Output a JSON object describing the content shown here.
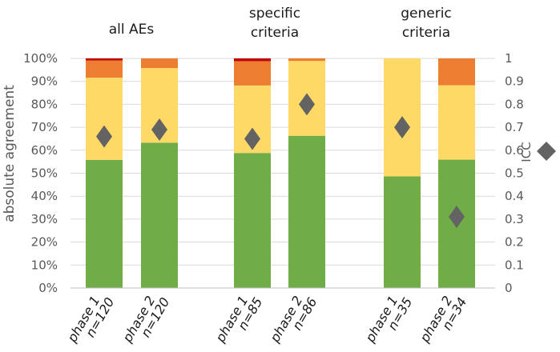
{
  "chart_data": {
    "type": "bar",
    "stacked": true,
    "groups": [
      {
        "title_lines": [
          "all AEs"
        ],
        "bars": [
          "phase 1 n=120",
          "phase 2 n=120"
        ]
      },
      {
        "title_lines": [
          "specific",
          "criteria"
        ],
        "bars": [
          "phase 1 n=85",
          "phase 2 n=86"
        ]
      },
      {
        "title_lines": [
          "generic",
          "criteria"
        ],
        "bars": [
          "phase 1 n=35",
          "phase 2 n=34"
        ]
      }
    ],
    "categories": [
      {
        "line1": "phase 1",
        "line2": "n=120"
      },
      {
        "line1": "phase 2",
        "line2": "n=120"
      },
      {
        "line1": "phase 1",
        "line2": "n=85"
      },
      {
        "line1": "phase 2",
        "line2": "n=86"
      },
      {
        "line1": "phase 1",
        "line2": "n=35"
      },
      {
        "line1": "phase 2",
        "line2": "n=34"
      }
    ],
    "series": [
      {
        "name": "green",
        "color": "#70ad47",
        "values": [
          55.8,
          63.3,
          58.8,
          66.3,
          48.6,
          55.9
        ]
      },
      {
        "name": "yellow",
        "color": "#ffd966",
        "values": [
          35.8,
          32.5,
          29.4,
          32.6,
          51.4,
          32.4
        ]
      },
      {
        "name": "orange",
        "color": "#ed7d31",
        "values": [
          7.5,
          4.2,
          10.6,
          1.1,
          0.0,
          11.7
        ]
      },
      {
        "name": "red",
        "color": "#c00000",
        "values": [
          0.9,
          0.0,
          1.2,
          0.0,
          0.0,
          0.0
        ]
      }
    ],
    "icc": {
      "name": "ICC",
      "color": "#636363",
      "values": [
        0.66,
        0.69,
        0.65,
        0.8,
        0.7,
        0.31
      ]
    },
    "ylabel": "absolute agreement",
    "ylim": [
      0,
      100
    ],
    "yticks": [
      "0%",
      "10%",
      "20%",
      "30%",
      "40%",
      "50%",
      "60%",
      "70%",
      "80%",
      "90%",
      "100%"
    ],
    "y2label": "ICC",
    "y2lim": [
      0,
      1
    ],
    "y2ticks": [
      "0",
      "0.1",
      "0.2",
      "0.3",
      "0.4",
      "0.5",
      "0.6",
      "0.7",
      "0.8",
      "0.9",
      "1"
    ],
    "legend_position": "right"
  }
}
